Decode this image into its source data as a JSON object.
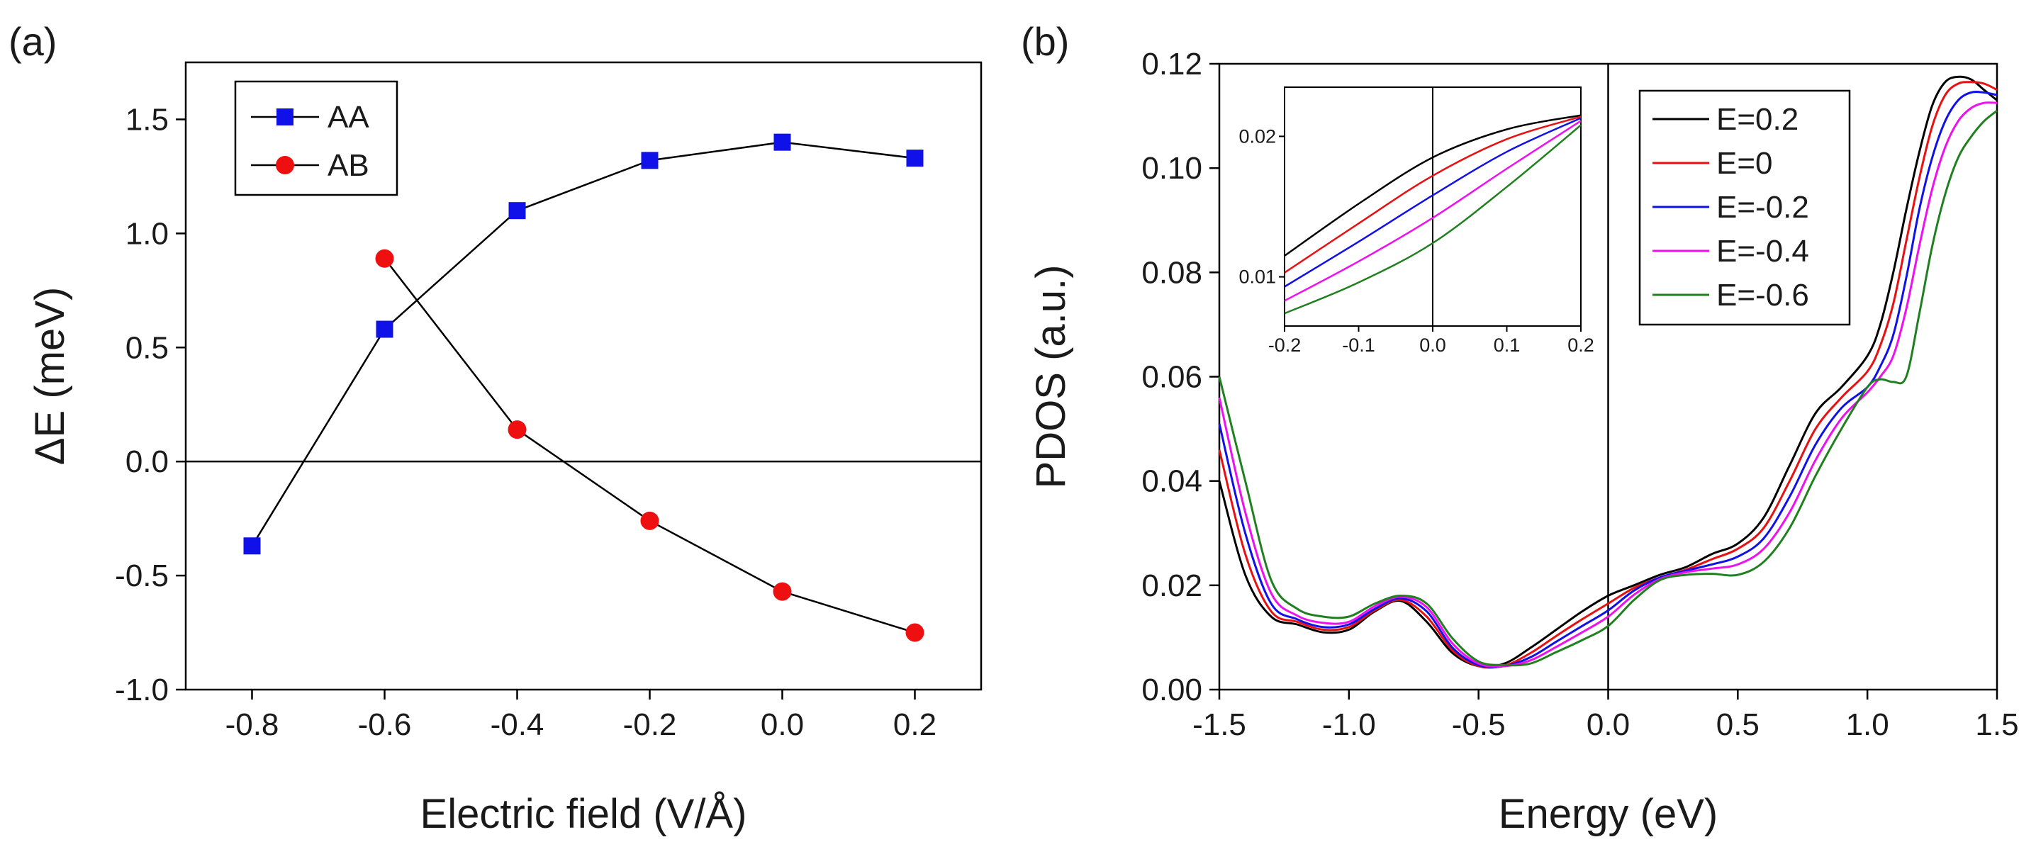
{
  "panels": {
    "a": {
      "label": "(a)"
    },
    "b": {
      "label": "(b)"
    }
  },
  "chart_data": [
    {
      "type": "line",
      "panel": "(a)",
      "title": "",
      "xlabel": "Electric field (V/Å)",
      "ylabel": "ΔE (meV)",
      "xlim": [
        -0.9,
        0.3
      ],
      "ylim": [
        -1.0,
        1.75
      ],
      "xticks": [
        -0.8,
        -0.6,
        -0.4,
        -0.2,
        0.0,
        0.2
      ],
      "xtick_labels": [
        "-0.8",
        "-0.6",
        "-0.4",
        "-0.2",
        "0.0",
        "0.2"
      ],
      "yticks": [
        -1.0,
        -0.5,
        0.0,
        0.5,
        1.0,
        1.5
      ],
      "ytick_labels": [
        "-1.0",
        "-0.5",
        "0.0",
        "0.5",
        "1.0",
        "1.5"
      ],
      "reference_line": {
        "y": 0.0
      },
      "legend": {
        "position": "top-left"
      },
      "series": [
        {
          "name": "AA",
          "marker": "square",
          "color": "#1010e8",
          "line_color": "#000000",
          "x": [
            -0.8,
            -0.6,
            -0.4,
            -0.2,
            0.0,
            0.2
          ],
          "y": [
            -0.37,
            0.58,
            1.1,
            1.32,
            1.4,
            1.33
          ]
        },
        {
          "name": "AB",
          "marker": "circle",
          "color": "#ee1010",
          "line_color": "#000000",
          "x": [
            -0.6,
            -0.4,
            -0.2,
            0.0,
            0.2
          ],
          "y": [
            0.89,
            0.14,
            -0.26,
            -0.57,
            -0.75
          ]
        }
      ]
    },
    {
      "type": "line",
      "panel": "(b)",
      "title": "",
      "xlabel": "Energy (eV)",
      "ylabel": "PDOS (a.u.)",
      "xlim": [
        -1.5,
        1.5
      ],
      "ylim": [
        0.0,
        0.12
      ],
      "xticks": [
        -1.5,
        -1.0,
        -0.5,
        0.0,
        0.5,
        1.0,
        1.5
      ],
      "xtick_labels": [
        "-1.5",
        "-1.0",
        "-0.5",
        "0.0",
        "0.5",
        "1.0",
        "1.5"
      ],
      "yticks": [
        0.0,
        0.02,
        0.04,
        0.06,
        0.08,
        0.1,
        0.12
      ],
      "ytick_labels": [
        "0.00",
        "0.02",
        "0.04",
        "0.06",
        "0.08",
        "0.10",
        "0.12"
      ],
      "reference_line": {
        "x": 0.0
      },
      "legend": {
        "position": "top-right"
      },
      "x": [
        -1.5,
        -1.4,
        -1.3,
        -1.2,
        -1.1,
        -1.0,
        -0.9,
        -0.8,
        -0.7,
        -0.6,
        -0.5,
        -0.4,
        -0.3,
        -0.2,
        -0.1,
        0.0,
        0.1,
        0.2,
        0.3,
        0.4,
        0.5,
        0.6,
        0.7,
        0.8,
        0.9,
        1.0,
        1.05,
        1.1,
        1.15,
        1.2,
        1.25,
        1.3,
        1.35,
        1.4,
        1.45,
        1.5
      ],
      "series": [
        {
          "name": "E=0.2",
          "color": "#000000",
          "y": [
            0.04,
            0.022,
            0.014,
            0.0125,
            0.011,
            0.0115,
            0.015,
            0.017,
            0.013,
            0.007,
            0.0045,
            0.005,
            0.008,
            0.0115,
            0.015,
            0.018,
            0.02,
            0.022,
            0.0235,
            0.026,
            0.028,
            0.033,
            0.043,
            0.053,
            0.058,
            0.064,
            0.07,
            0.08,
            0.092,
            0.103,
            0.112,
            0.1165,
            0.1175,
            0.117,
            0.115,
            0.113
          ]
        },
        {
          "name": "E=0",
          "color": "#e81010",
          "y": [
            0.046,
            0.026,
            0.015,
            0.013,
            0.0115,
            0.012,
            0.0152,
            0.0172,
            0.014,
            0.0075,
            0.0045,
            0.0046,
            0.007,
            0.0103,
            0.0135,
            0.0165,
            0.0195,
            0.0215,
            0.023,
            0.025,
            0.027,
            0.031,
            0.04,
            0.05,
            0.056,
            0.061,
            0.066,
            0.074,
            0.086,
            0.098,
            0.108,
            0.114,
            0.1162,
            0.1165,
            0.1162,
            0.115
          ]
        },
        {
          "name": "E=-0.2",
          "color": "#1010e8",
          "y": [
            0.051,
            0.03,
            0.0165,
            0.0135,
            0.012,
            0.0125,
            0.0155,
            0.0175,
            0.015,
            0.008,
            0.0047,
            0.0045,
            0.0062,
            0.0092,
            0.0122,
            0.0152,
            0.019,
            0.0215,
            0.0228,
            0.024,
            0.0255,
            0.029,
            0.037,
            0.047,
            0.054,
            0.058,
            0.062,
            0.068,
            0.079,
            0.092,
            0.102,
            0.109,
            0.113,
            0.1145,
            0.1145,
            0.114
          ]
        },
        {
          "name": "E=-0.4",
          "color": "#ee10ee",
          "y": [
            0.056,
            0.034,
            0.0185,
            0.0142,
            0.0128,
            0.013,
            0.016,
            0.0178,
            0.0158,
            0.0088,
            0.005,
            0.0045,
            0.0056,
            0.0082,
            0.011,
            0.014,
            0.0182,
            0.0212,
            0.0225,
            0.0232,
            0.024,
            0.027,
            0.034,
            0.044,
            0.052,
            0.057,
            0.06,
            0.064,
            0.073,
            0.085,
            0.096,
            0.104,
            0.109,
            0.1115,
            0.1125,
            0.1125
          ]
        },
        {
          "name": "E=-0.6",
          "color": "#208020",
          "y": [
            0.06,
            0.04,
            0.021,
            0.0155,
            0.014,
            0.014,
            0.0165,
            0.018,
            0.0165,
            0.0098,
            0.0054,
            0.0047,
            0.005,
            0.0072,
            0.0095,
            0.0122,
            0.0172,
            0.021,
            0.022,
            0.0222,
            0.022,
            0.0245,
            0.031,
            0.041,
            0.05,
            0.058,
            0.0595,
            0.059,
            0.06,
            0.072,
            0.085,
            0.095,
            0.102,
            0.106,
            0.109,
            0.111
          ]
        }
      ],
      "inset": {
        "xlim": [
          -0.2,
          0.2
        ],
        "ylim": [
          0.0065,
          0.0235
        ],
        "xticks": [
          -0.2,
          -0.1,
          0.0,
          0.1,
          0.2
        ],
        "xtick_labels": [
          "-0.2",
          "-0.1",
          "0.0",
          "0.1",
          "0.2"
        ],
        "yticks": [
          0.01,
          0.02
        ],
        "ytick_labels": [
          "0.01",
          "0.02"
        ],
        "reference_line": {
          "x": 0.0
        },
        "x": [
          -0.2,
          -0.1,
          0.0,
          0.1,
          0.2
        ],
        "series": [
          {
            "name": "E=0.2",
            "color": "#000000",
            "y": [
              0.0115,
              0.0152,
              0.0185,
              0.0205,
              0.0215
            ]
          },
          {
            "name": "E=0",
            "color": "#e81010",
            "y": [
              0.0103,
              0.0138,
              0.0172,
              0.0198,
              0.0214
            ]
          },
          {
            "name": "E=-0.2",
            "color": "#1010e8",
            "y": [
              0.0093,
              0.0125,
              0.0158,
              0.0189,
              0.0213
            ]
          },
          {
            "name": "E=-0.4",
            "color": "#ee10ee",
            "y": [
              0.0083,
              0.0111,
              0.0142,
              0.0177,
              0.0211
            ]
          },
          {
            "name": "E=-0.6",
            "color": "#208020",
            "y": [
              0.0074,
              0.0096,
              0.0124,
              0.0164,
              0.0208
            ]
          }
        ]
      }
    }
  ]
}
